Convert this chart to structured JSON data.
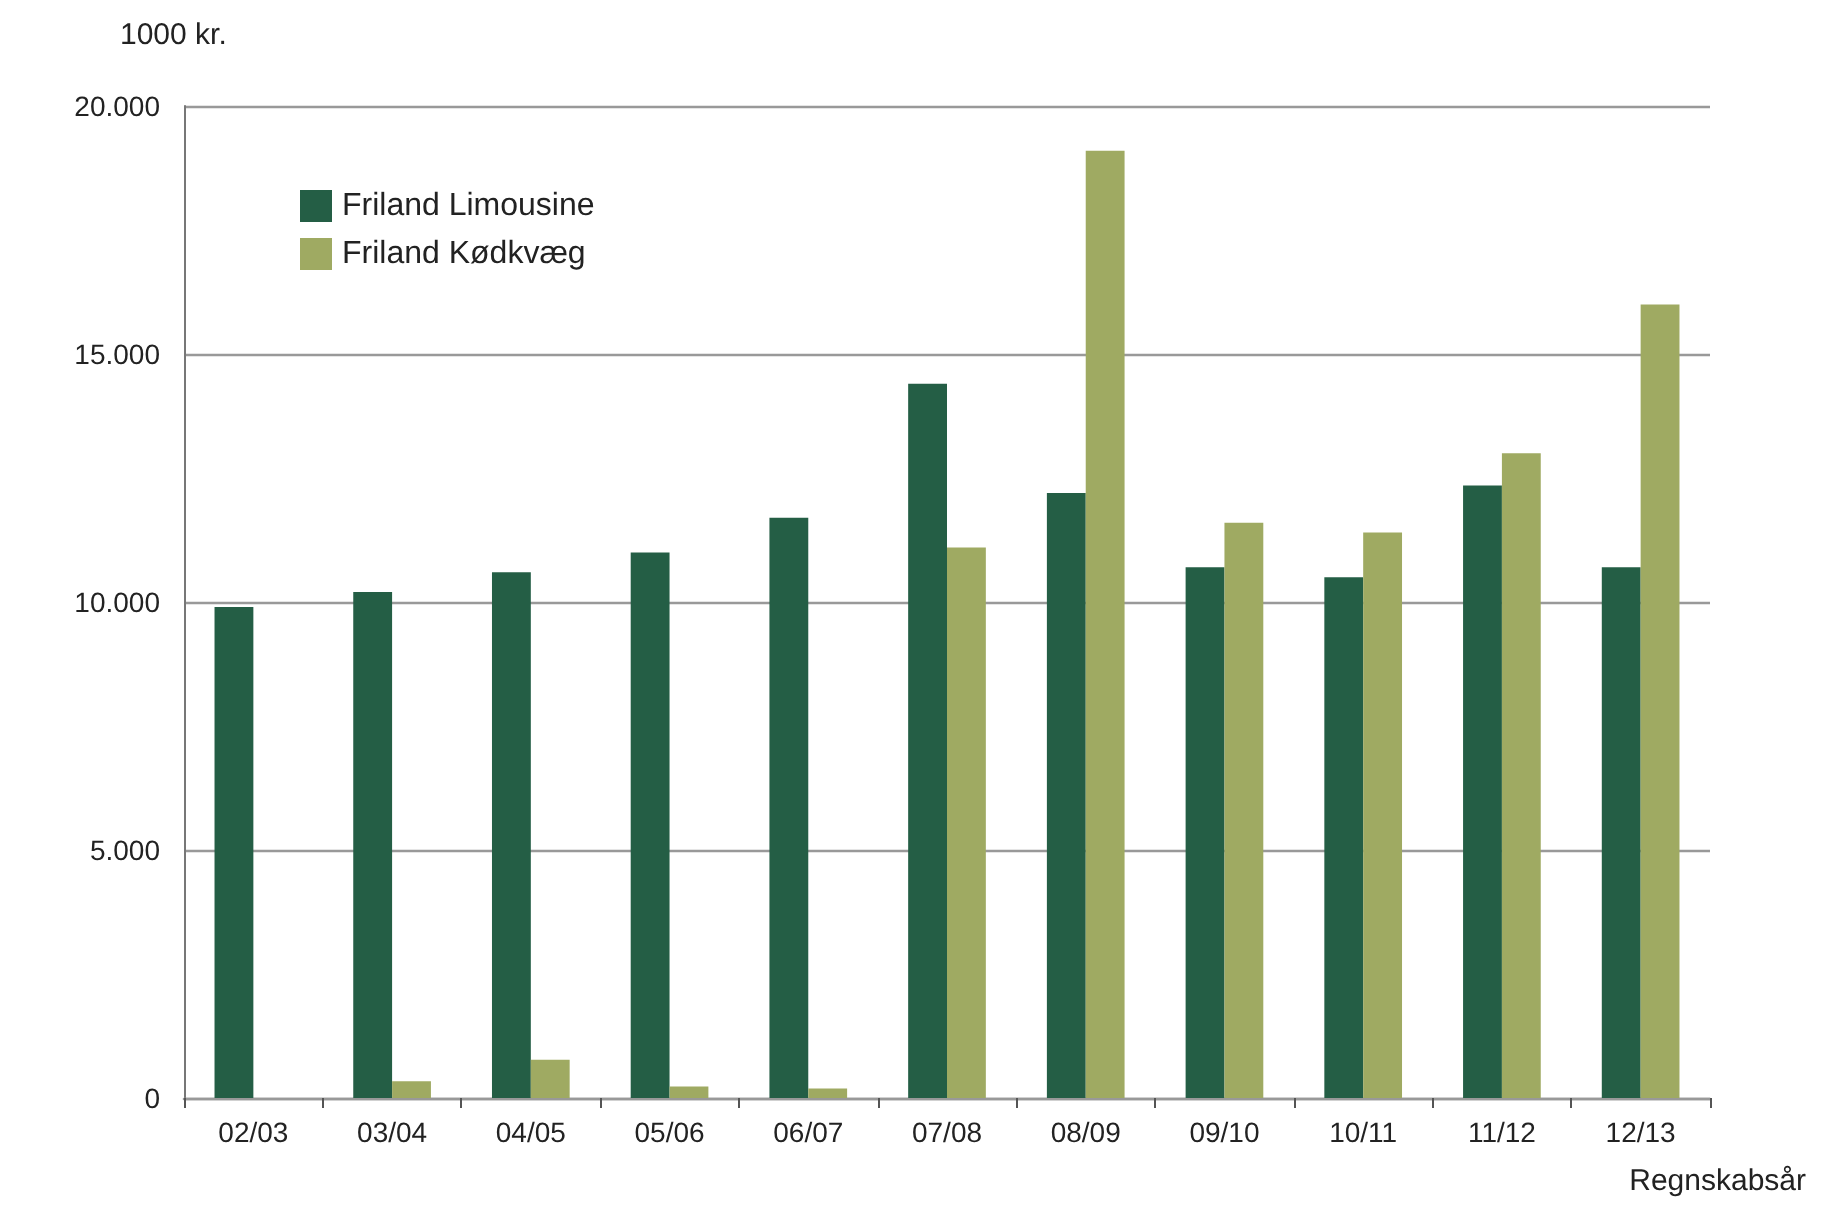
{
  "chart_data": {
    "type": "bar",
    "ylabel": "1000 kr.",
    "xlabel": "Regnskabsår",
    "categories": [
      "02/03",
      "03/04",
      "04/05",
      "05/06",
      "06/07",
      "07/08",
      "08/09",
      "09/10",
      "10/11",
      "11/12",
      "12/13"
    ],
    "series": [
      {
        "name": "Friland Limousine",
        "color": "#245e45",
        "values": [
          9900,
          10200,
          10600,
          11000,
          11700,
          14400,
          12200,
          10700,
          10500,
          12350,
          10700
        ]
      },
      {
        "name": "Friland Kødkvæg",
        "color": "#9faa62",
        "values": [
          null,
          340,
          770,
          230,
          190,
          11100,
          19100,
          11600,
          11400,
          13000,
          16000
        ]
      }
    ],
    "ylim": [
      0,
      20000
    ],
    "yticks": [
      {
        "value": 0,
        "label": "0"
      },
      {
        "value": 5000,
        "label": "5.000"
      },
      {
        "value": 10000,
        "label": "10.000"
      },
      {
        "value": 15000,
        "label": "15.000"
      },
      {
        "value": 20000,
        "label": "20.000"
      }
    ],
    "grid": "y",
    "legend": "top left"
  }
}
